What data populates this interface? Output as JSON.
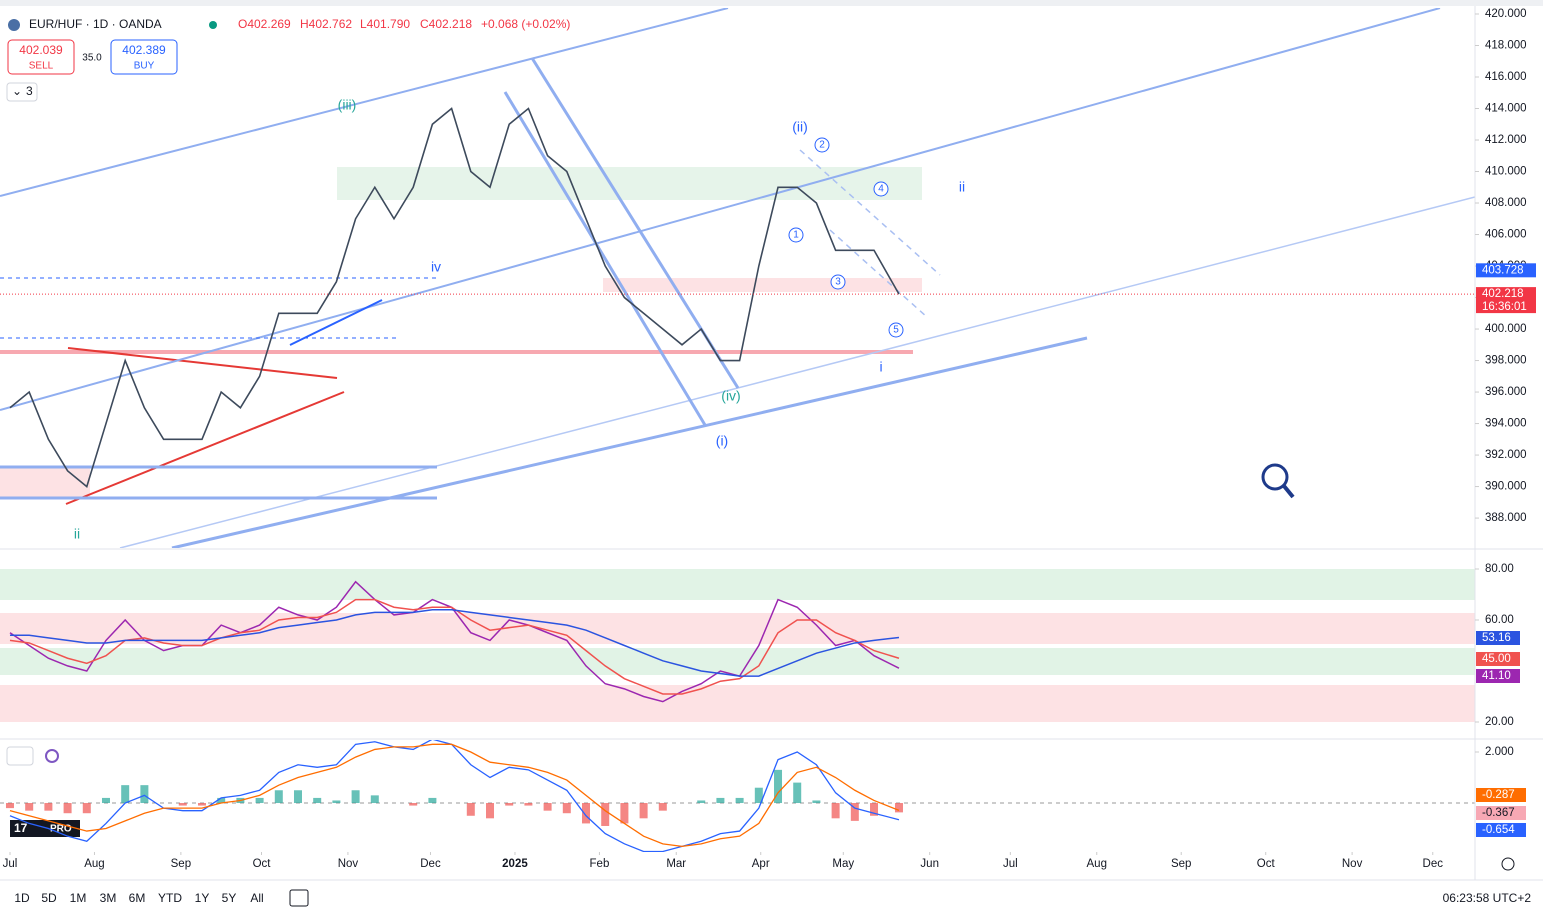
{
  "header": {
    "symbol": "EUR/HUF · 1D · OANDA",
    "open": "O402.269",
    "high": "H402.762",
    "low": "L401.790",
    "close": "C402.218",
    "change": "+0.068 (+0.02%)"
  },
  "trade": {
    "sell_price": "402.039",
    "sell": "SELL",
    "spread": "35.0",
    "buy_price": "402.389",
    "buy": "BUY"
  },
  "indicators": "3",
  "toolbar": {
    "ranges": [
      "1D",
      "5D",
      "1M",
      "3M",
      "6M",
      "YTD",
      "1Y",
      "5Y",
      "All"
    ],
    "clock": "06:23:58 UTC+2"
  },
  "chart_data": [
    {
      "type": "line",
      "color": "#3d4a5c",
      "x": [
        0,
        1,
        2,
        3,
        4,
        5,
        6,
        7,
        8,
        9,
        10,
        11,
        12,
        13,
        14,
        15,
        16,
        17,
        18,
        19,
        20,
        21,
        22,
        23,
        24,
        25,
        26,
        27,
        28,
        29,
        30,
        31,
        32,
        33,
        34,
        35,
        36,
        37,
        38,
        39,
        40,
        41,
        42,
        43,
        44,
        45,
        46.3
      ],
      "values": [
        395,
        396,
        393,
        391,
        390,
        394,
        398,
        395,
        393,
        393,
        393,
        396,
        395,
        397,
        401,
        401,
        401,
        403,
        407,
        409,
        407,
        409,
        413,
        414,
        410,
        409,
        413,
        414,
        411,
        410,
        407,
        404,
        402,
        401,
        400,
        399,
        400,
        398,
        398,
        404,
        409,
        409,
        408,
        405,
        405,
        405,
        402.218
      ],
      "xlim": [
        -0.52,
        76.3
      ],
      "xticks": [
        {
          "value": 0,
          "label": "Jul"
        },
        {
          "value": 4.4,
          "label": "Aug"
        },
        {
          "value": 8.9,
          "label": "Sep"
        },
        {
          "value": 13.1,
          "label": "Oct"
        },
        {
          "value": 17.6,
          "label": "Nov"
        },
        {
          "value": 21.9,
          "label": "Dec"
        },
        {
          "value": 26.3,
          "label": "2025"
        },
        {
          "value": 30.7,
          "label": "Feb"
        },
        {
          "value": 34.7,
          "label": "Mar"
        },
        {
          "value": 39.1,
          "label": "Apr"
        },
        {
          "value": 43.4,
          "label": "May"
        },
        {
          "value": 47.9,
          "label": "Jun"
        },
        {
          "value": 52.1,
          "label": "Jul"
        },
        {
          "value": 56.6,
          "label": "Aug"
        },
        {
          "value": 61,
          "label": "Sep"
        },
        {
          "value": 65.4,
          "label": "Oct"
        },
        {
          "value": 69.9,
          "label": "Nov"
        },
        {
          "value": 74.1,
          "label": "Dec"
        }
      ],
      "ylim": [
        386.1,
        420.38
      ],
      "yticks": [
        {
          "value": 388,
          "label": "388.000"
        },
        {
          "value": 390,
          "label": "390.000"
        },
        {
          "value": 392,
          "label": "392.000"
        },
        {
          "value": 394,
          "label": "394.000"
        },
        {
          "value": 396,
          "label": "396.000"
        },
        {
          "value": 398,
          "label": "398.000"
        },
        {
          "value": 400,
          "label": "400.000"
        },
        {
          "value": 402,
          "label": "402.000"
        },
        {
          "value": 404,
          "label": "404.000"
        },
        {
          "value": 406,
          "label": "406.000"
        },
        {
          "value": 408,
          "label": "408.000"
        },
        {
          "value": 410,
          "label": "410.000"
        },
        {
          "value": 412,
          "label": "412.000"
        },
        {
          "value": 414,
          "label": "414.000"
        },
        {
          "value": 416,
          "label": "416.000"
        },
        {
          "value": 418,
          "label": "418.000"
        },
        {
          "value": 420,
          "label": "420.000"
        }
      ],
      "price_labels": [
        {
          "value": 403.728,
          "label": "403.728",
          "color": "#2962ff"
        },
        {
          "value": 402.218,
          "label": "402.218",
          "color": "#f23645"
        }
      ],
      "countdown": "16:36:01",
      "annotations": [
        "(iii)",
        "iv",
        "(ii)",
        "2",
        "4",
        "1",
        "3",
        "5",
        "ii",
        "(iv)",
        "(i)",
        "i",
        "ii"
      ]
    },
    {
      "type": "line",
      "series": [
        {
          "color": "#9c27b0",
          "values": [
            55,
            50,
            45,
            42,
            40,
            52,
            60,
            52,
            48,
            50,
            50,
            58,
            55,
            58,
            65,
            62,
            60,
            65,
            75,
            68,
            62,
            63,
            68,
            65,
            55,
            52,
            60,
            58,
            55,
            52,
            42,
            35,
            33,
            30,
            28,
            32,
            35,
            40,
            38,
            50,
            68,
            65,
            58,
            50,
            52,
            46,
            41.1
          ]
        },
        {
          "color": "#f0524f",
          "values": [
            52,
            51,
            48,
            45,
            43,
            46,
            52,
            53,
            51,
            50,
            50,
            53,
            55,
            56,
            60,
            61,
            61,
            63,
            68,
            68,
            65,
            64,
            65,
            65,
            60,
            56,
            57,
            58,
            56,
            54,
            48,
            42,
            37,
            34,
            31,
            31,
            33,
            36,
            37,
            42,
            55,
            60,
            60,
            55,
            52,
            48,
            45
          ]
        },
        {
          "color": "#2b54e0",
          "values": [
            54,
            54,
            53,
            52,
            51,
            51,
            52,
            52,
            52,
            52,
            52,
            53,
            54,
            55,
            57,
            58,
            59,
            60,
            62,
            63,
            63,
            63,
            64,
            64,
            63,
            62,
            61,
            60,
            59,
            58,
            56,
            53,
            50,
            47,
            44,
            42,
            40,
            39,
            38,
            38,
            41,
            44,
            47,
            49,
            51,
            52,
            53.16
          ]
        }
      ],
      "ylim": [
        14.12,
        87.06
      ],
      "yticks": [
        {
          "value": 20,
          "label": "20.00"
        },
        {
          "value": 60,
          "label": "60.00"
        },
        {
          "value": 80,
          "label": "80.00"
        }
      ],
      "level_labels": [
        {
          "value": 53.16,
          "label": "53.16",
          "color": "#2b54e0"
        },
        {
          "value": 45,
          "label": "45.00",
          "color": "#f0524f"
        },
        {
          "value": 41.1,
          "label": "41.10",
          "color": "#9c27b0"
        }
      ]
    },
    {
      "type": "macd",
      "series": [
        {
          "color": "#2962ff",
          "values": [
            -0.5,
            -0.8,
            -1.0,
            -1.3,
            -1.5,
            -0.8,
            0,
            0.3,
            -0.2,
            -0.3,
            -0.3,
            0.2,
            0.3,
            0.5,
            1.2,
            1.5,
            1.4,
            1.5,
            2.3,
            2.4,
            2.2,
            2.1,
            2.5,
            2.3,
            1.5,
            1.0,
            1.4,
            1.3,
            0.9,
            0.5,
            -0.5,
            -1.2,
            -1.6,
            -1.9,
            -1.9,
            -1.7,
            -1.5,
            -1.2,
            -1.1,
            -0.2,
            1.7,
            2.0,
            1.5,
            0.4,
            -0.2,
            -0.4,
            -0.654
          ]
        },
        {
          "color": "#ff6d00",
          "values": [
            -0.3,
            -0.5,
            -0.7,
            -0.9,
            -1.1,
            -1.0,
            -0.7,
            -0.4,
            -0.2,
            -0.2,
            -0.2,
            0,
            0.1,
            0.3,
            0.7,
            1.0,
            1.2,
            1.4,
            1.8,
            2.1,
            2.2,
            2.2,
            2.3,
            2.3,
            2.0,
            1.6,
            1.5,
            1.4,
            1.2,
            0.9,
            0.3,
            -0.3,
            -0.8,
            -1.3,
            -1.6,
            -1.7,
            -1.6,
            -1.4,
            -1.3,
            -0.8,
            0.4,
            1.2,
            1.4,
            1.0,
            0.5,
            0.1,
            -0.287
          ]
        }
      ],
      "histogram": [
        -0.2,
        -0.3,
        -0.3,
        -0.4,
        -0.4,
        0.2,
        0.7,
        0.7,
        0,
        -0.1,
        -0.1,
        0.2,
        0.2,
        0.2,
        0.5,
        0.5,
        0.2,
        0.1,
        0.5,
        0.3,
        0,
        -0.1,
        0.2,
        0,
        -0.5,
        -0.6,
        -0.1,
        -0.1,
        -0.3,
        -0.4,
        -0.8,
        -0.9,
        -0.8,
        -0.6,
        -0.3,
        0,
        0.1,
        0.2,
        0.2,
        0.6,
        1.3,
        0.8,
        0.1,
        -0.6,
        -0.7,
        -0.5,
        -0.367
      ],
      "histogram_colors": [
        "#26a69a",
        "#ef5350"
      ],
      "ylim": [
        -1.92,
        2.47
      ],
      "yticks": [
        {
          "value": 2,
          "label": "2.000"
        }
      ],
      "level_labels": [
        {
          "value": -0.287,
          "label": "-0.287",
          "color": "#ff6d00"
        },
        {
          "value": -0.367,
          "label": "-0.367",
          "color": "#f7a8b4"
        },
        {
          "value": -0.654,
          "label": "-0.654",
          "color": "#2962ff"
        }
      ]
    }
  ]
}
